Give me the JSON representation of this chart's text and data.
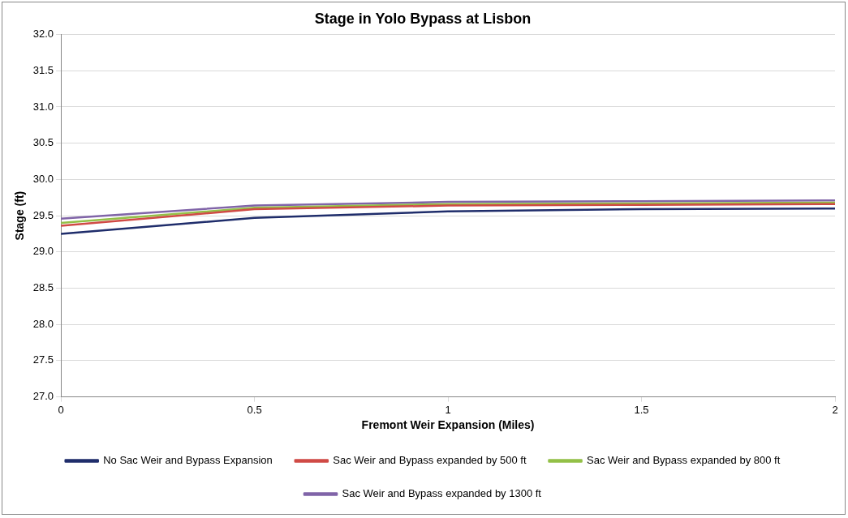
{
  "chart_data": {
    "type": "line",
    "title": "Stage in Yolo Bypass at Lisbon",
    "xlabel": "Fremont Weir Expansion (Miles)",
    "ylabel": "Stage (ft)",
    "x": [
      0,
      0.5,
      1,
      1.5,
      2
    ],
    "series": [
      {
        "name": "No Sac Weir and Bypass Expansion",
        "color": "#1f2d6b",
        "values": [
          29.25,
          29.47,
          29.56,
          29.59,
          29.6
        ]
      },
      {
        "name": "Sac Weir and Bypass expanded by 500 ft",
        "color": "#d04a45",
        "values": [
          29.36,
          29.59,
          29.64,
          29.65,
          29.66
        ]
      },
      {
        "name": "Sac Weir and Bypass expanded by 800 ft",
        "color": "#93c047",
        "values": [
          29.4,
          29.61,
          29.66,
          29.67,
          29.68
        ]
      },
      {
        "name": "Sac Weir and Bypass expanded by 1300 ft",
        "color": "#8064a8",
        "values": [
          29.46,
          29.64,
          29.69,
          29.7,
          29.71
        ]
      }
    ],
    "xlim": [
      0,
      2
    ],
    "xticks": [
      0,
      0.5,
      1,
      1.5,
      2
    ],
    "ylim": [
      27,
      32
    ],
    "yticks": [
      {
        "value": 27,
        "label": "27.0"
      },
      {
        "value": 27.5,
        "label": "27.5"
      },
      {
        "value": 28,
        "label": "28.0"
      },
      {
        "value": 28.5,
        "label": "28.5"
      },
      {
        "value": 29,
        "label": "29.0"
      },
      {
        "value": 29.5,
        "label": "29.5"
      },
      {
        "value": 30,
        "label": "30.0"
      },
      {
        "value": 30.5,
        "label": "30.5"
      },
      {
        "value": 31,
        "label": "31.0"
      },
      {
        "value": 31.5,
        "label": "31.5"
      },
      {
        "value": 32,
        "label": "32.0"
      }
    ],
    "grid": "y",
    "legend": "bottom",
    "marker": "none",
    "line_style": "solid"
  }
}
